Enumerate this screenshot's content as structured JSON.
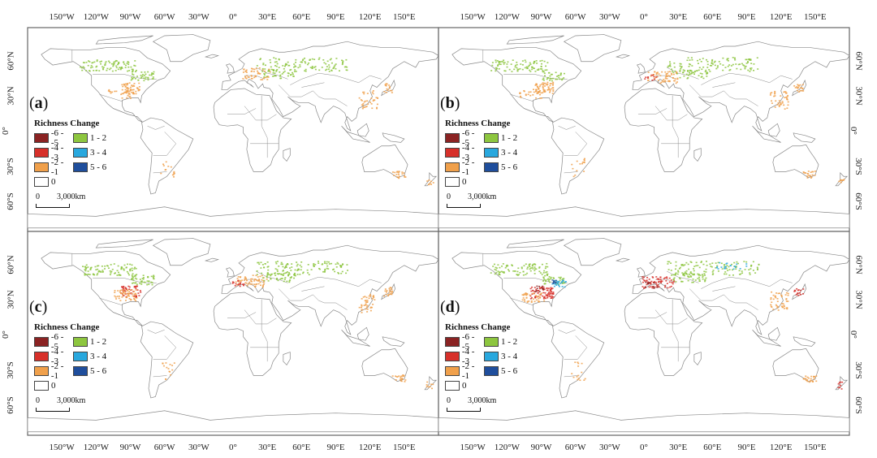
{
  "figure": {
    "panels": [
      {
        "id": "a",
        "label": "a"
      },
      {
        "id": "b",
        "label": "b"
      },
      {
        "id": "c",
        "label": "c"
      },
      {
        "id": "d",
        "label": "d"
      }
    ],
    "longitude_labels": [
      "150°W",
      "120°W",
      "90°W",
      "60°W",
      "30°W",
      "0°",
      "30°E",
      "60°E",
      "90°E",
      "120°E",
      "150°E"
    ],
    "latitude_labels": [
      "60°N",
      "30°N",
      "0°",
      "30°S",
      "60°S"
    ],
    "legend": {
      "title": "Richness Change",
      "items": [
        {
          "label": "-6 - -5",
          "color": "#8b2323"
        },
        {
          "label": "1 - 2",
          "color": "#8dc63f"
        },
        {
          "label": "-4 - -3",
          "color": "#d7302a"
        },
        {
          "label": "3 - 4",
          "color": "#29a8de"
        },
        {
          "label": "-2 - -1",
          "color": "#f0a04b"
        },
        {
          "label": "5 - 6",
          "color": "#1f4e9c"
        },
        {
          "label": "0",
          "color": "#ffffff"
        }
      ]
    },
    "scalebar": {
      "start": "0",
      "end": "3,000",
      "unit": "km"
    },
    "colors": {
      "frame": "#666666",
      "land_outline": "#888888"
    }
  }
}
